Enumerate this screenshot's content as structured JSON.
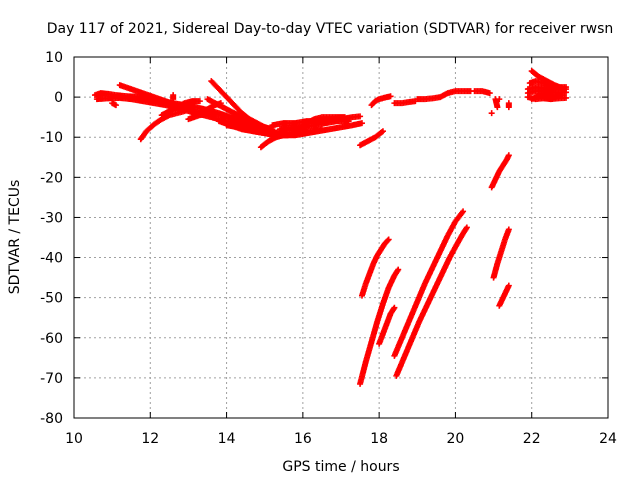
{
  "chart_data": {
    "type": "scatter",
    "title": "Day 117 of 2021, Sidereal Day-to-day VTEC variation (SDTVAR) for receiver rwsn",
    "xlabel": "GPS time / hours",
    "ylabel": "SDTVAR / TECUs",
    "xlim": [
      10,
      24
    ],
    "ylim": [
      -80,
      10
    ],
    "xticks": [
      "10",
      "12",
      "14",
      "16",
      "18",
      "20",
      "22",
      "24"
    ],
    "yticks": [
      "10",
      "0",
      "-10",
      "-20",
      "-30",
      "-40",
      "-50",
      "-60",
      "-70",
      "-80"
    ],
    "grid": true,
    "marker": "plus",
    "color": "#ff0000",
    "series": [
      {
        "points": [
          [
            10.55,
            0.5
          ],
          [
            10.7,
            1.0
          ],
          [
            10.9,
            0.8
          ],
          [
            11.1,
            0.5
          ],
          [
            11.4,
            0.2
          ],
          [
            11.7,
            0.1
          ],
          [
            12.0,
            -0.5
          ],
          [
            12.3,
            -1.0
          ],
          [
            12.6,
            -1.5
          ],
          [
            12.9,
            -2.0
          ],
          [
            13.2,
            -2.5
          ],
          [
            13.5,
            -3.2
          ],
          [
            13.8,
            -4.0
          ],
          [
            14.1,
            -5.0
          ],
          [
            14.4,
            -6.0
          ],
          [
            14.7,
            -7.0
          ],
          [
            15.0,
            -7.5
          ]
        ]
      },
      {
        "points": [
          [
            10.6,
            -0.5
          ],
          [
            10.9,
            -0.3
          ],
          [
            11.2,
            -0.2
          ],
          [
            11.5,
            -0.5
          ],
          [
            11.8,
            -1.0
          ],
          [
            12.1,
            -1.5
          ],
          [
            12.4,
            -2.0
          ],
          [
            12.7,
            -2.8
          ],
          [
            13.0,
            -3.5
          ],
          [
            13.3,
            -4.3
          ],
          [
            13.6,
            -5.0
          ],
          [
            13.9,
            -5.8
          ],
          [
            14.2,
            -6.5
          ],
          [
            14.5,
            -7.2
          ]
        ]
      },
      {
        "points": [
          [
            11.0,
            -1.5
          ],
          [
            11.1,
            -2.0
          ]
        ]
      },
      {
        "points": [
          [
            11.2,
            3.0
          ],
          [
            11.5,
            2.0
          ],
          [
            11.8,
            1.0
          ],
          [
            12.1,
            0.0
          ],
          [
            12.4,
            -1.0
          ],
          [
            12.7,
            -2.0
          ],
          [
            13.0,
            -3.0
          ],
          [
            13.3,
            -4.0
          ]
        ]
      },
      {
        "points": [
          [
            11.75,
            -10.5
          ],
          [
            11.9,
            -8.5
          ],
          [
            12.1,
            -6.8
          ],
          [
            12.3,
            -5.5
          ],
          [
            12.5,
            -4.5
          ],
          [
            12.7,
            -4.0
          ],
          [
            12.9,
            -3.5
          ]
        ]
      },
      {
        "points": [
          [
            12.3,
            -4.5
          ],
          [
            12.5,
            -3.5
          ],
          [
            12.7,
            -2.5
          ],
          [
            12.9,
            -1.5
          ],
          [
            13.1,
            -1.0
          ],
          [
            13.3,
            -1.0
          ]
        ]
      },
      {
        "points": [
          [
            12.6,
            0.5
          ],
          [
            12.6,
            -0.5
          ]
        ]
      },
      {
        "points": [
          [
            13.0,
            -5.5
          ],
          [
            13.3,
            -4.5
          ],
          [
            13.6,
            -4.0
          ],
          [
            13.9,
            -4.5
          ],
          [
            14.2,
            -5.5
          ],
          [
            14.5,
            -6.5
          ],
          [
            14.8,
            -7.5
          ]
        ]
      },
      {
        "points": [
          [
            13.1,
            -5.0
          ],
          [
            13.3,
            -4.0
          ],
          [
            13.5,
            -3.0
          ],
          [
            13.7,
            -2.0
          ],
          [
            13.85,
            -1.5
          ]
        ]
      },
      {
        "points": [
          [
            13.6,
            4.0
          ],
          [
            13.8,
            2.0
          ],
          [
            14.0,
            0.0
          ],
          [
            14.2,
            -2.0
          ],
          [
            14.4,
            -4.0
          ],
          [
            14.6,
            -5.5
          ],
          [
            14.8,
            -6.5
          ],
          [
            15.0,
            -7.5
          ],
          [
            15.2,
            -8.0
          ]
        ]
      },
      {
        "points": [
          [
            13.5,
            -0.5
          ],
          [
            13.7,
            -1.5
          ],
          [
            13.9,
            -2.5
          ],
          [
            14.1,
            -3.5
          ],
          [
            14.3,
            -4.5
          ],
          [
            14.5,
            -5.5
          ],
          [
            14.7,
            -6.5
          ],
          [
            14.9,
            -7.2
          ],
          [
            15.1,
            -7.8
          ]
        ]
      },
      {
        "points": [
          [
            13.8,
            -6.0
          ],
          [
            14.1,
            -7.0
          ],
          [
            14.4,
            -8.0
          ],
          [
            14.7,
            -8.5
          ],
          [
            15.0,
            -9.0
          ],
          [
            15.3,
            -9.5
          ],
          [
            15.6,
            -9.5
          ]
        ]
      },
      {
        "points": [
          [
            14.0,
            -7.0
          ],
          [
            14.3,
            -7.5
          ],
          [
            14.6,
            -8.0
          ],
          [
            14.9,
            -8.5
          ],
          [
            15.2,
            -9.0
          ],
          [
            15.5,
            -8.5
          ],
          [
            15.8,
            -8.0
          ],
          [
            16.1,
            -7.5
          ]
        ]
      },
      {
        "points": [
          [
            14.4,
            -7.5
          ],
          [
            14.7,
            -8.5
          ],
          [
            15.0,
            -9.0
          ],
          [
            15.3,
            -9.5
          ],
          [
            15.6,
            -9.5
          ],
          [
            15.9,
            -9.0
          ],
          [
            16.2,
            -8.5
          ],
          [
            16.5,
            -8.0
          ]
        ]
      },
      {
        "points": [
          [
            14.9,
            -12.5
          ],
          [
            15.1,
            -11.0
          ],
          [
            15.3,
            -10.0
          ],
          [
            15.5,
            -9.5
          ],
          [
            15.8,
            -9.5
          ],
          [
            16.1,
            -9.0
          ],
          [
            16.4,
            -8.5
          ],
          [
            16.7,
            -8.0
          ],
          [
            17.0,
            -7.5
          ],
          [
            17.3,
            -7.0
          ],
          [
            17.55,
            -6.5
          ]
        ]
      },
      {
        "points": [
          [
            15.2,
            -7.0
          ],
          [
            15.5,
            -6.5
          ],
          [
            15.8,
            -6.5
          ],
          [
            16.1,
            -6.0
          ],
          [
            16.4,
            -6.0
          ],
          [
            16.7,
            -5.5
          ],
          [
            17.0,
            -5.5
          ],
          [
            17.3,
            -5.0
          ],
          [
            17.5,
            -4.8
          ]
        ]
      },
      {
        "points": [
          [
            15.4,
            -8.0
          ],
          [
            15.7,
            -7.5
          ],
          [
            16.0,
            -7.5
          ],
          [
            16.3,
            -7.0
          ],
          [
            16.6,
            -6.5
          ],
          [
            16.9,
            -6.0
          ],
          [
            17.2,
            -6.0
          ]
        ]
      },
      {
        "points": [
          [
            15.7,
            -9.0
          ],
          [
            15.9,
            -8.0
          ],
          [
            16.1,
            -6.5
          ],
          [
            16.3,
            -5.5
          ],
          [
            16.5,
            -5.0
          ],
          [
            16.7,
            -5.0
          ],
          [
            16.9,
            -5.0
          ],
          [
            17.1,
            -5.0
          ]
        ]
      },
      {
        "points": [
          [
            17.5,
            -12.0
          ],
          [
            17.7,
            -11.0
          ],
          [
            17.9,
            -10.0
          ],
          [
            18.1,
            -8.5
          ]
        ]
      },
      {
        "points": [
          [
            17.8,
            -2.0
          ],
          [
            17.9,
            -1.0
          ],
          [
            18.0,
            -0.5
          ],
          [
            18.2,
            0.0
          ],
          [
            18.3,
            0.2
          ]
        ]
      },
      {
        "points": [
          [
            18.4,
            -1.5
          ],
          [
            18.6,
            -1.5
          ],
          [
            18.8,
            -1.2
          ],
          [
            18.95,
            -1.0
          ]
        ]
      },
      {
        "points": [
          [
            19.0,
            -0.5
          ],
          [
            19.2,
            -0.5
          ],
          [
            19.4,
            -0.3
          ],
          [
            19.6,
            0.0
          ],
          [
            19.8,
            1.0
          ],
          [
            20.0,
            1.5
          ],
          [
            20.2,
            1.5
          ],
          [
            20.4,
            1.5
          ]
        ]
      },
      {
        "points": [
          [
            20.5,
            1.5
          ],
          [
            20.7,
            1.5
          ],
          [
            20.9,
            1.0
          ]
        ]
      },
      {
        "points": [
          [
            20.95,
            -4.0
          ]
        ]
      },
      {
        "points": [
          [
            21.05,
            -0.5
          ],
          [
            21.1,
            -2.5
          ]
        ]
      },
      {
        "points": [
          [
            21.15,
            -0.5
          ]
        ]
      },
      {
        "points": [
          [
            21.4,
            -1.5
          ],
          [
            21.4,
            -2.5
          ]
        ]
      },
      {
        "points": [
          [
            17.5,
            -71.5
          ],
          [
            17.65,
            -66.0
          ],
          [
            17.8,
            -61.0
          ],
          [
            17.95,
            -56.0
          ],
          [
            18.1,
            -51.5
          ],
          [
            18.25,
            -47.5
          ],
          [
            18.4,
            -44.5
          ],
          [
            18.5,
            -43.0
          ]
        ]
      },
      {
        "points": [
          [
            17.55,
            -49.5
          ],
          [
            17.65,
            -46.5
          ],
          [
            17.75,
            -44.0
          ],
          [
            17.85,
            -41.5
          ],
          [
            17.95,
            -39.5
          ],
          [
            18.05,
            -38.0
          ],
          [
            18.15,
            -36.5
          ],
          [
            18.25,
            -35.5
          ]
        ]
      },
      {
        "points": [
          [
            18.0,
            -61.5
          ],
          [
            18.1,
            -59.0
          ],
          [
            18.2,
            -56.5
          ],
          [
            18.3,
            -54.0
          ],
          [
            18.4,
            -52.5
          ]
        ]
      },
      {
        "points": [
          [
            18.4,
            -64.5
          ],
          [
            18.6,
            -60.0
          ],
          [
            18.8,
            -55.5
          ],
          [
            19.0,
            -51.0
          ],
          [
            19.2,
            -46.5
          ],
          [
            19.4,
            -42.5
          ],
          [
            19.6,
            -38.5
          ],
          [
            19.8,
            -34.5
          ],
          [
            20.0,
            -31.0
          ],
          [
            20.2,
            -28.5
          ]
        ]
      },
      {
        "points": [
          [
            18.45,
            -69.5
          ],
          [
            18.65,
            -65.0
          ],
          [
            18.85,
            -60.5
          ],
          [
            19.05,
            -56.0
          ],
          [
            19.25,
            -52.0
          ],
          [
            19.45,
            -48.0
          ],
          [
            19.65,
            -44.0
          ],
          [
            19.85,
            -40.0
          ],
          [
            20.05,
            -36.5
          ],
          [
            20.2,
            -34.0
          ],
          [
            20.3,
            -32.5
          ]
        ]
      },
      {
        "points": [
          [
            20.95,
            -22.5
          ],
          [
            21.05,
            -20.5
          ],
          [
            21.15,
            -18.5
          ],
          [
            21.25,
            -17.0
          ],
          [
            21.35,
            -15.5
          ],
          [
            21.4,
            -14.5
          ]
        ]
      },
      {
        "points": [
          [
            21.0,
            -45.0
          ],
          [
            21.1,
            -41.5
          ],
          [
            21.2,
            -38.5
          ],
          [
            21.3,
            -35.5
          ],
          [
            21.4,
            -33.0
          ]
        ]
      },
      {
        "points": [
          [
            21.15,
            -52.0
          ],
          [
            21.25,
            -50.0
          ],
          [
            21.35,
            -48.0
          ],
          [
            21.4,
            -47.0
          ]
        ]
      },
      {
        "points": [
          [
            21.9,
            0.0
          ],
          [
            22.1,
            -0.5
          ],
          [
            22.3,
            -0.3
          ],
          [
            22.5,
            -0.5
          ],
          [
            22.7,
            -0.3
          ],
          [
            22.9,
            -0.2
          ]
        ]
      },
      {
        "points": [
          [
            21.9,
            1.0
          ],
          [
            22.1,
            1.5
          ],
          [
            22.3,
            1.5
          ],
          [
            22.5,
            1.2
          ],
          [
            22.7,
            1.0
          ],
          [
            22.9,
            1.2
          ]
        ]
      },
      {
        "points": [
          [
            21.9,
            2.0
          ],
          [
            22.1,
            2.5
          ],
          [
            22.3,
            2.3
          ],
          [
            22.5,
            2.2
          ],
          [
            22.7,
            2.0
          ],
          [
            22.9,
            2.0
          ]
        ]
      },
      {
        "points": [
          [
            21.95,
            3.5
          ],
          [
            22.1,
            4.0
          ],
          [
            22.3,
            3.5
          ],
          [
            22.5,
            3.0
          ],
          [
            22.7,
            2.5
          ],
          [
            22.9,
            2.5
          ]
        ]
      },
      {
        "points": [
          [
            22.0,
            6.5
          ],
          [
            22.2,
            5.0
          ],
          [
            22.4,
            4.0
          ],
          [
            22.6,
            3.0
          ],
          [
            22.8,
            2.2
          ]
        ]
      },
      {
        "points": [
          [
            22.0,
            -0.5
          ],
          [
            22.2,
            0.5
          ],
          [
            22.4,
            0.5
          ],
          [
            22.6,
            0.0
          ],
          [
            22.8,
            0.5
          ]
        ]
      }
    ]
  }
}
